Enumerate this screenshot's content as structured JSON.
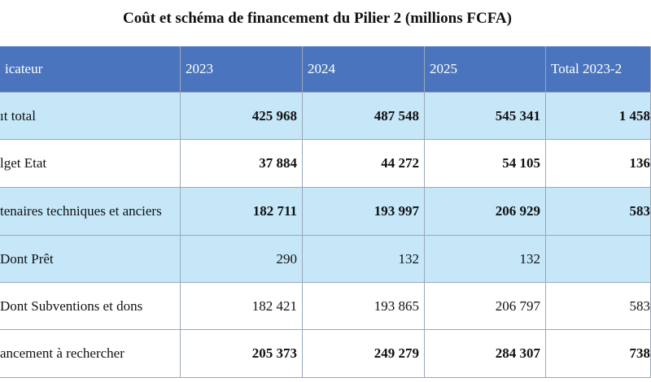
{
  "title": "Coût et schéma de financement du Pilier 2 (millions FCFA)",
  "table": {
    "header": [
      "icateur",
      "2023",
      "2024",
      "2025",
      "Total 2023-2"
    ],
    "rows": [
      [
        "ıt total",
        "425 968",
        "487 548",
        "545 341",
        "1 458"
      ],
      [
        "lget Etat",
        "37 884",
        "44 272",
        "54 105",
        "136"
      ],
      [
        "tenaires techniques et anciers",
        "182 711",
        "193 997",
        "206 929",
        "583"
      ],
      [
        "Dont Prêt",
        "290",
        "132",
        "132",
        ""
      ],
      [
        "Dont Subventions et dons",
        "182 421",
        "193 865",
        "206 797",
        "583"
      ],
      [
        "ancement à rechercher",
        "205 373",
        "249 279",
        "284 307",
        "738"
      ]
    ]
  }
}
